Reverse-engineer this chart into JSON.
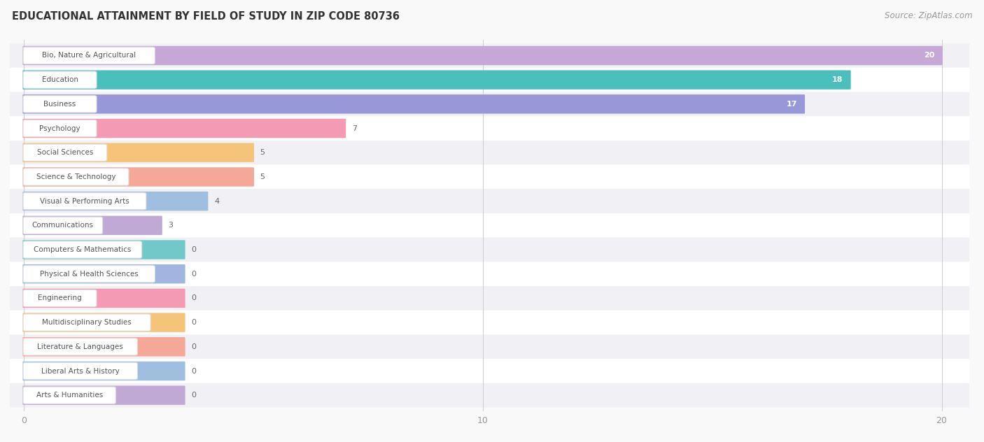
{
  "title": "EDUCATIONAL ATTAINMENT BY FIELD OF STUDY IN ZIP CODE 80736",
  "source": "Source: ZipAtlas.com",
  "categories": [
    "Bio, Nature & Agricultural",
    "Education",
    "Business",
    "Psychology",
    "Social Sciences",
    "Science & Technology",
    "Visual & Performing Arts",
    "Communications",
    "Computers & Mathematics",
    "Physical & Health Sciences",
    "Engineering",
    "Multidisciplinary Studies",
    "Literature & Languages",
    "Liberal Arts & History",
    "Arts & Humanities"
  ],
  "values": [
    20,
    18,
    17,
    7,
    5,
    5,
    4,
    3,
    0,
    0,
    0,
    0,
    0,
    0,
    0
  ],
  "bar_colors": [
    "#c5a8d5",
    "#4bbfbb",
    "#9898d8",
    "#f49ab5",
    "#f5c47a",
    "#f5a898",
    "#a0bee0",
    "#c0aad5",
    "#72c8c8",
    "#a0b5e0",
    "#f49ab5",
    "#f5c47a",
    "#f5a898",
    "#a0bee0",
    "#c0aad5"
  ],
  "row_bg_colors": [
    "#f0f0f5",
    "#ffffff"
  ],
  "xlim_max": 20,
  "background_color": "#f9f9f9",
  "title_fontsize": 10.5,
  "source_fontsize": 8.5,
  "pill_text_color": "#555555",
  "value_text_color_inside": "#ffffff",
  "value_text_color_outside": "#666666"
}
